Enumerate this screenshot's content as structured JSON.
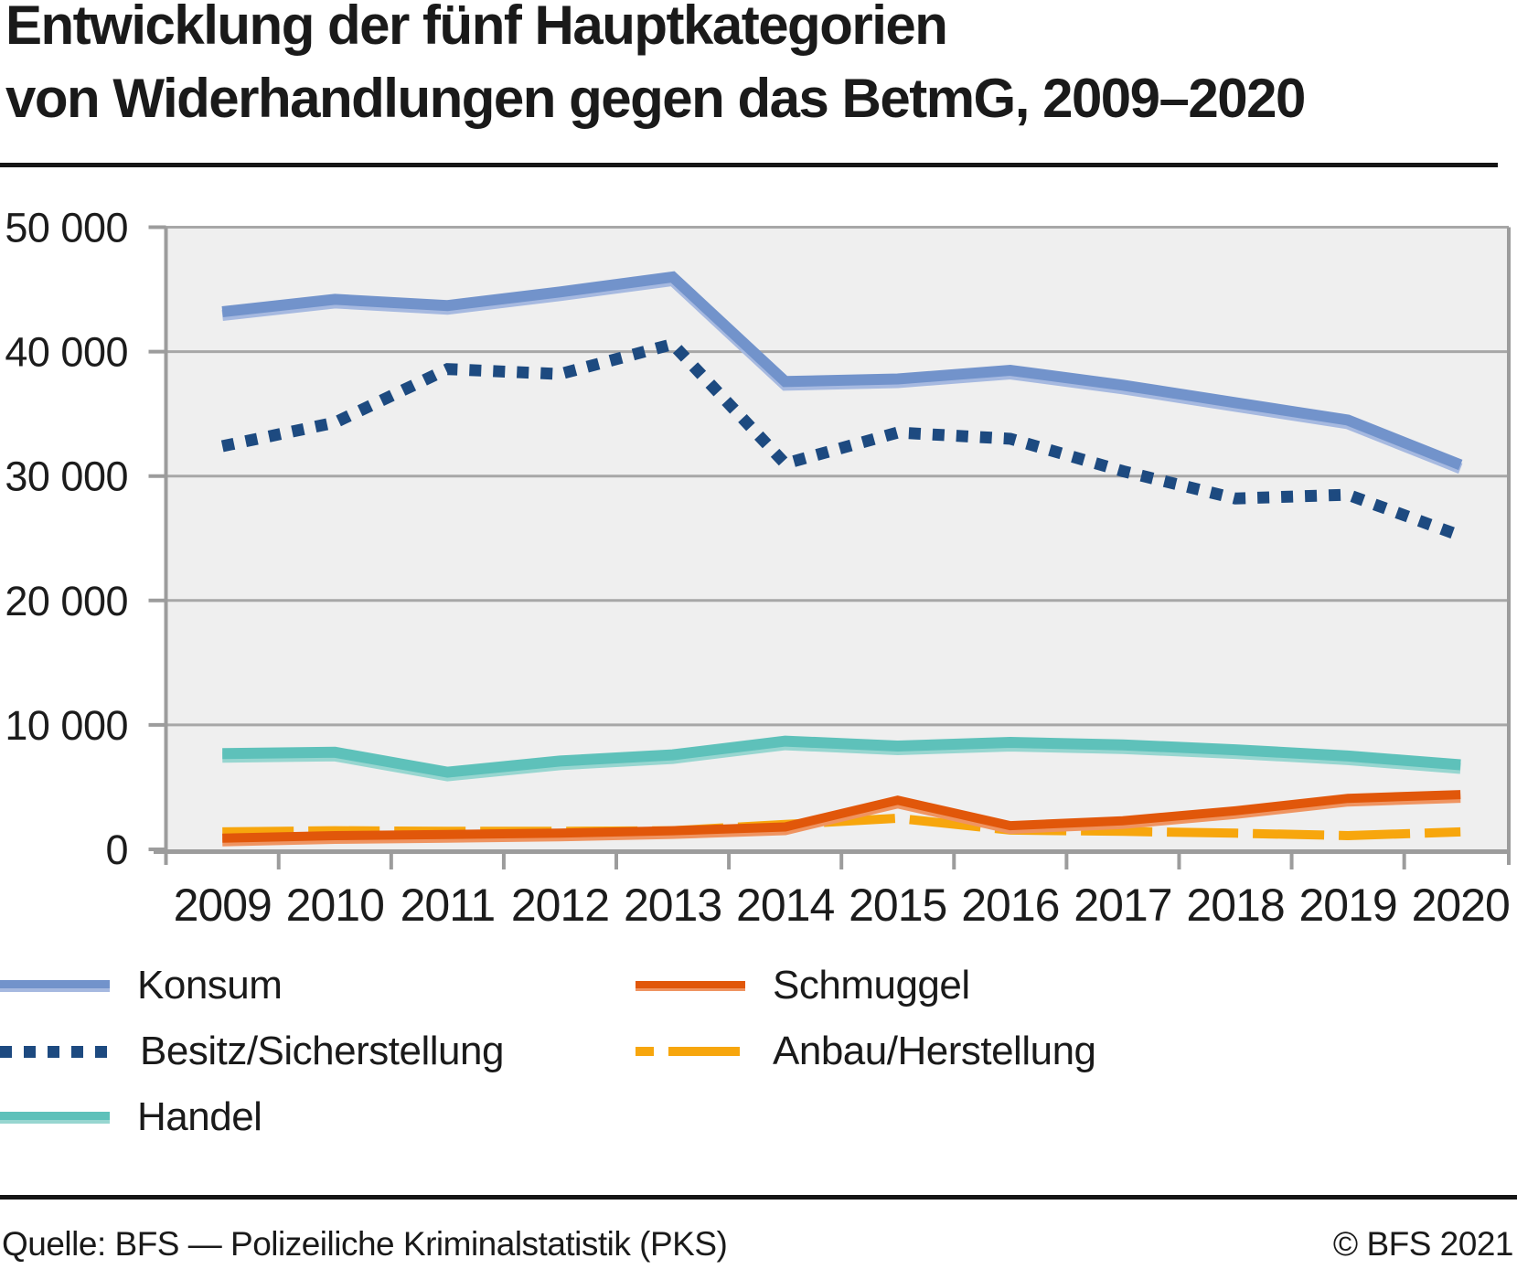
{
  "title": {
    "line1": "Entwicklung der fünf Hauptkategorien",
    "line2": "von Widerhandlungen gegen das BetmG, 2009–2020"
  },
  "footer": {
    "source": "Quelle: BFS — Polizeiliche Kriminalstatistik (PKS)",
    "copyright": "© BFS 2021"
  },
  "chart_data": {
    "type": "line",
    "title": "Entwicklung der fünf Hauptkategorien von Widerhandlungen gegen das BetmG, 2009–2020",
    "categories": [
      2009,
      2010,
      2011,
      2012,
      2013,
      2014,
      2015,
      2016,
      2017,
      2018,
      2019,
      2020
    ],
    "x_tick_labels": [
      "2009",
      "2010",
      "2011",
      "2012",
      "2013",
      "2014",
      "2015",
      "2016",
      "2017",
      "2018",
      "2019",
      "2020"
    ],
    "ylim": [
      0,
      50000
    ],
    "grid": true,
    "legend_position": "below",
    "y_ticks": [
      {
        "value": 50000,
        "label": "50 000"
      },
      {
        "value": 40000,
        "label": "40 000"
      },
      {
        "value": 30000,
        "label": "30 000"
      },
      {
        "value": 20000,
        "label": "20 000"
      },
      {
        "value": 10000,
        "label": "10 000"
      },
      {
        "value": 0,
        "label": "0"
      }
    ],
    "series": [
      {
        "name": "Konsum",
        "style": "solid",
        "color": "#7293cb",
        "color_light": "#a6b9e0",
        "width": 12,
        "values": [
          43200,
          44200,
          43700,
          44800,
          46000,
          37600,
          37800,
          38500,
          37300,
          35900,
          34500,
          30900
        ]
      },
      {
        "name": "Besitz/Sicherstellung",
        "style": "dotted",
        "color": "#1d4a80",
        "width": 13,
        "values": [
          32400,
          34300,
          38600,
          38200,
          40600,
          31000,
          33500,
          33000,
          30400,
          28200,
          28500,
          25200
        ]
      },
      {
        "name": "Handel",
        "style": "solid",
        "color": "#5ec1ba",
        "color_light": "#97d6d0",
        "width": 12,
        "values": [
          7700,
          7800,
          6200,
          7100,
          7600,
          8700,
          8300,
          8600,
          8400,
          8000,
          7500,
          6800
        ]
      },
      {
        "name": "Schmuggel",
        "style": "solid",
        "color": "#e1570a",
        "color_light": "#ef9461",
        "width": 10,
        "values": [
          900,
          1100,
          1200,
          1300,
          1500,
          1800,
          3950,
          1900,
          2300,
          3100,
          4100,
          4400
        ]
      },
      {
        "name": "Anbau/Herstellung",
        "style": "dashed",
        "color": "#f7a60d",
        "width": 10,
        "values": [
          1400,
          1500,
          1450,
          1450,
          1500,
          2000,
          2500,
          1550,
          1450,
          1300,
          1100,
          1400
        ]
      }
    ],
    "plot_colors": {
      "background": "#efefef",
      "gridline": "#a7a7a7",
      "axis": "#9c9c9c",
      "label_text": "#1c1c1c"
    }
  }
}
